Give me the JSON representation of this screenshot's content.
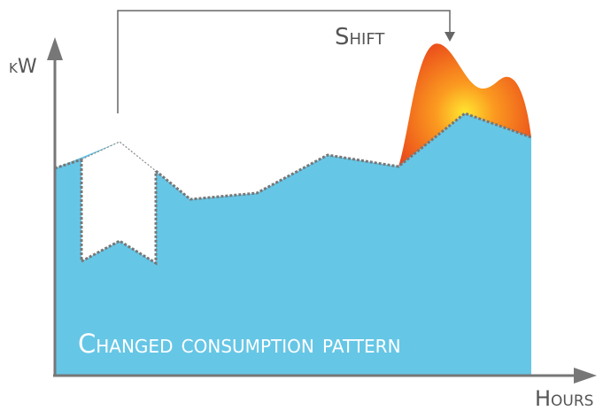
{
  "labels": {
    "y_axis": "kW",
    "x_axis": "Hours",
    "shift": "Shift",
    "pattern": "Changed consumption pattern"
  }
}
